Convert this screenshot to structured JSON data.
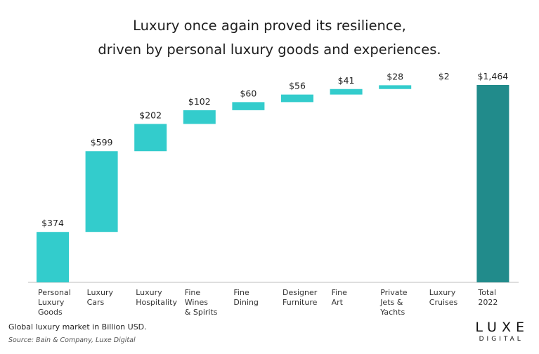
{
  "title_lines": [
    "Luxury once again proved its resilience,",
    "driven by personal luxury goods and experiences."
  ],
  "footnote": "Global luxury market in Billion USD.",
  "source": "Source: Bain & Company, Luxe Digital",
  "logo": {
    "brand": "LUXE",
    "sub": "DIGITAL"
  },
  "colors": {
    "step": "#33cccc",
    "total": "#218b8b"
  },
  "chart_data": {
    "type": "bar",
    "subtype": "waterfall",
    "categories": [
      [
        "Personal",
        "Luxury",
        "Goods"
      ],
      [
        "Luxury",
        "Cars"
      ],
      [
        "Luxury",
        "Hospitality"
      ],
      [
        "Fine",
        "Wines",
        "& Spirits"
      ],
      [
        "Fine",
        "Dining"
      ],
      [
        "Designer",
        "Furniture"
      ],
      [
        "Fine",
        "Art"
      ],
      [
        "Private",
        "Jets &",
        "Yachts"
      ],
      [
        "Luxury",
        "Cruises"
      ],
      [
        "Total",
        "2022"
      ]
    ],
    "values": [
      374,
      599,
      202,
      102,
      60,
      56,
      41,
      28,
      2,
      1464
    ],
    "labels": [
      "$374",
      "$599",
      "$202",
      "$102",
      "$60",
      "$56",
      "$41",
      "$28",
      "$2",
      "$1,464"
    ],
    "is_total": [
      false,
      false,
      false,
      false,
      false,
      false,
      false,
      false,
      false,
      true
    ],
    "ylim": [
      0,
      1464
    ],
    "grid": false,
    "legend": "none"
  }
}
